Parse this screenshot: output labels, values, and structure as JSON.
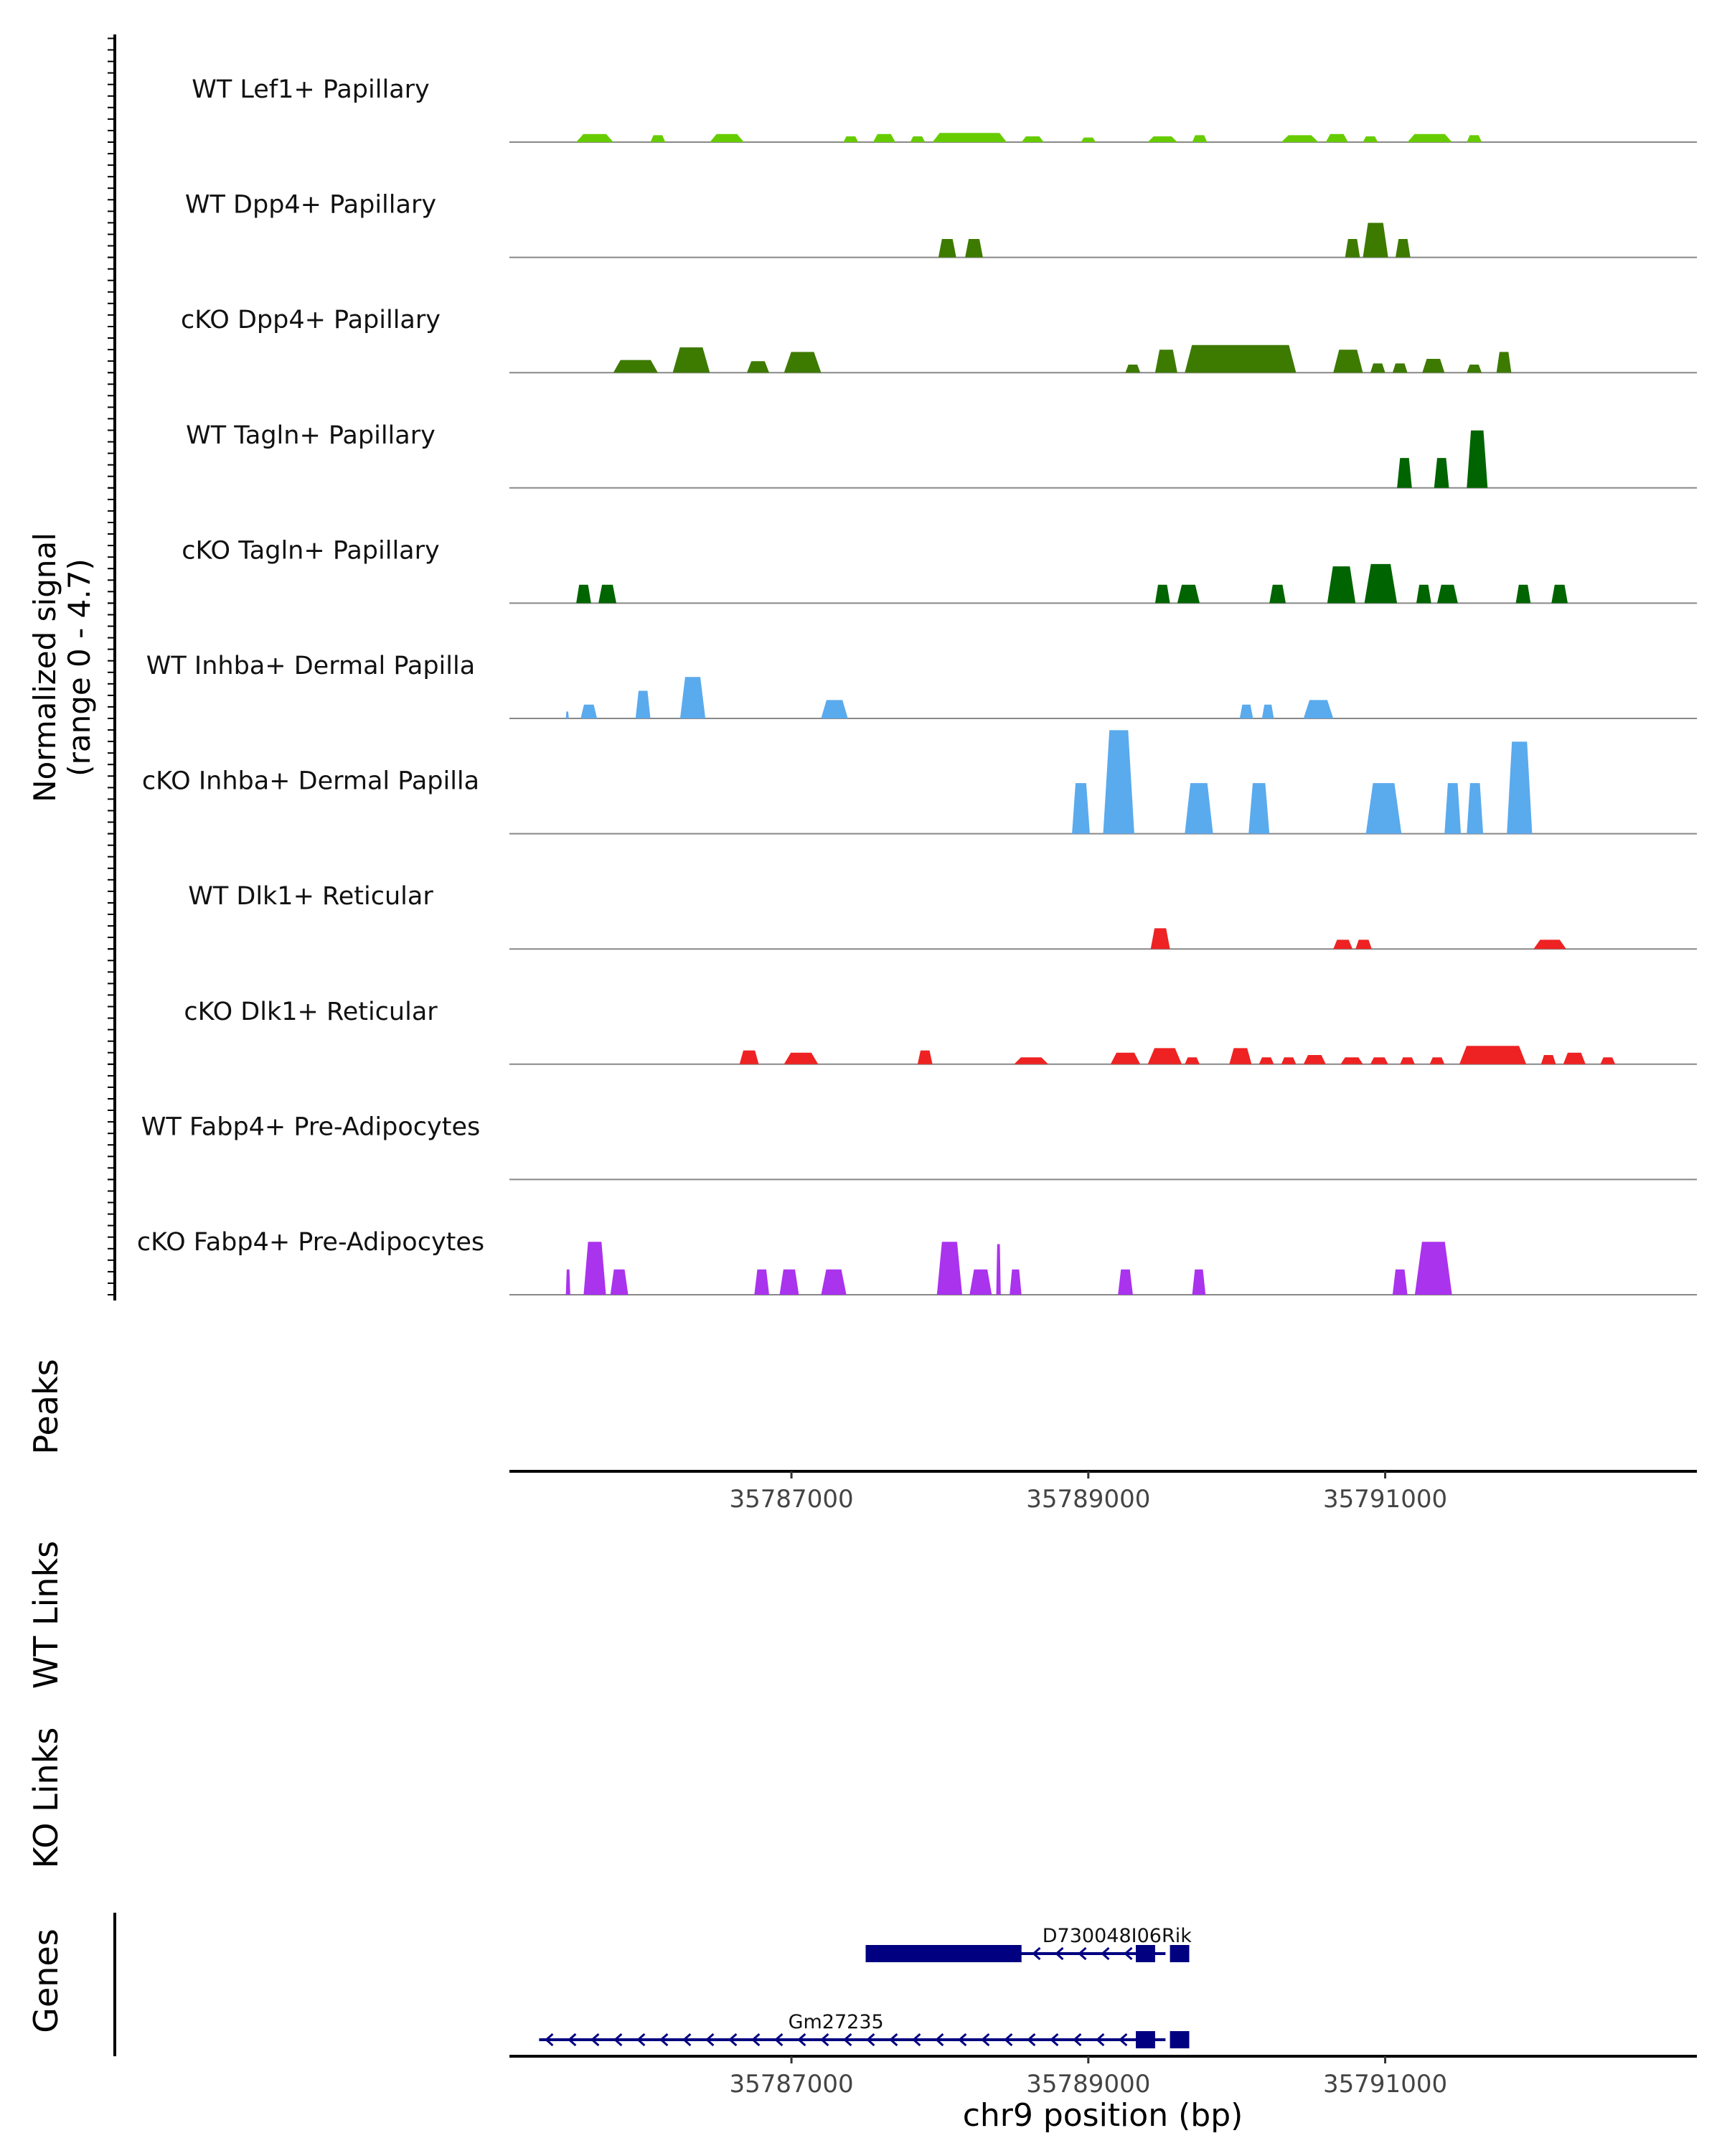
{
  "chart_data": {
    "type": "area",
    "title": "",
    "chromosome": "chr9",
    "xlabel": "chr9 position (bp)",
    "xlim": [
      35785100,
      35793100
    ],
    "x_ticks": [
      35787000,
      35789000,
      35791000
    ],
    "x_tick_labels": [
      "35787000",
      "35789000",
      "35791000"
    ],
    "signal_axis_label_line1": "Normalized signal",
    "signal_axis_label_line2": "(range 0 - 4.7)",
    "ylim": [
      0,
      4.7
    ],
    "panel_labels": {
      "peaks": "Peaks",
      "wt_links": "WT Links",
      "ko_links": "KO Links",
      "genes": "Genes"
    },
    "tracks": [
      {
        "name": "WT Lef1+ Papillary",
        "color": "#66cc00",
        "regions": [
          [
            35785550,
            35785800,
            0.35
          ],
          [
            35786050,
            35786150,
            0.3
          ],
          [
            35786450,
            35786680,
            0.35
          ],
          [
            35787350,
            35787450,
            0.25
          ],
          [
            35787550,
            35787700,
            0.35
          ],
          [
            35787800,
            35787900,
            0.25
          ],
          [
            35787950,
            35788450,
            0.4
          ],
          [
            35788550,
            35788700,
            0.25
          ],
          [
            35788950,
            35789050,
            0.2
          ],
          [
            35789400,
            35789600,
            0.25
          ],
          [
            35789700,
            35789800,
            0.3
          ],
          [
            35790300,
            35790550,
            0.3
          ],
          [
            35790600,
            35790750,
            0.35
          ],
          [
            35790850,
            35790950,
            0.25
          ],
          [
            35791150,
            35791450,
            0.35
          ],
          [
            35791550,
            35791650,
            0.3
          ]
        ]
      },
      {
        "name": "WT Dpp4+ Papillary",
        "color": "#3d7a00",
        "regions": [
          [
            35787990,
            35788110,
            0.8
          ],
          [
            35788170,
            35788290,
            0.8
          ],
          [
            35790730,
            35790830,
            0.8
          ],
          [
            35790850,
            35791020,
            1.5
          ],
          [
            35791070,
            35791170,
            0.8
          ]
        ]
      },
      {
        "name": "cKO Dpp4+ Papillary",
        "color": "#3d7a00",
        "regions": [
          [
            35785800,
            35786100,
            0.55
          ],
          [
            35786200,
            35786450,
            1.1
          ],
          [
            35786700,
            35786850,
            0.5
          ],
          [
            35786950,
            35787200,
            0.9
          ],
          [
            35789250,
            35789350,
            0.35
          ],
          [
            35789450,
            35789600,
            1.0
          ],
          [
            35789650,
            35790400,
            1.2
          ],
          [
            35790650,
            35790850,
            1.0
          ],
          [
            35790900,
            35791000,
            0.4
          ],
          [
            35791050,
            35791150,
            0.4
          ],
          [
            35791250,
            35791400,
            0.6
          ],
          [
            35791550,
            35791650,
            0.35
          ],
          [
            35791750,
            35791850,
            0.9
          ]
        ]
      },
      {
        "name": "WT Tagln+ Papillary",
        "color": "#006400",
        "regions": [
          [
            35791080,
            35791180,
            1.3
          ],
          [
            35791330,
            35791430,
            1.3
          ],
          [
            35791550,
            35791690,
            2.5
          ]
        ]
      },
      {
        "name": "cKO Tagln+ Papillary",
        "color": "#006400",
        "regions": [
          [
            35785550,
            35785650,
            0.8
          ],
          [
            35785700,
            35785820,
            0.8
          ],
          [
            35789450,
            35789550,
            0.8
          ],
          [
            35789600,
            35789750,
            0.8
          ],
          [
            35790220,
            35790330,
            0.8
          ],
          [
            35790610,
            35790800,
            1.6
          ],
          [
            35790860,
            35791080,
            1.7
          ],
          [
            35791210,
            35791310,
            0.8
          ],
          [
            35791350,
            35791490,
            0.8
          ],
          [
            35791880,
            35791980,
            0.8
          ],
          [
            35792120,
            35792230,
            0.8
          ]
        ]
      },
      {
        "name": "WT Inhba+ Dermal Papilla",
        "color": "#5aaaee",
        "regions": [
          [
            35785480,
            35785500,
            0.3
          ],
          [
            35785580,
            35785690,
            0.6
          ],
          [
            35785950,
            35786050,
            1.2
          ],
          [
            35786250,
            35786420,
            1.8
          ],
          [
            35787200,
            35787380,
            0.8
          ],
          [
            35790020,
            35790110,
            0.6
          ],
          [
            35790170,
            35790250,
            0.6
          ],
          [
            35790450,
            35790650,
            0.8
          ]
        ]
      },
      {
        "name": "cKO Inhba+ Dermal Papilla",
        "color": "#5aaaee",
        "regions": [
          [
            35788890,
            35789010,
            2.2
          ],
          [
            35789100,
            35789310,
            4.5
          ],
          [
            35789650,
            35789840,
            2.2
          ],
          [
            35790080,
            35790220,
            2.2
          ],
          [
            35790870,
            35791110,
            2.2
          ],
          [
            35791400,
            35791510,
            2.2
          ],
          [
            35791550,
            35791660,
            2.2
          ],
          [
            35791820,
            35791990,
            4.0
          ]
        ]
      },
      {
        "name": "WT Dlk1+ Reticular",
        "color": "#ee2222",
        "regions": [
          [
            35789420,
            35789550,
            0.9
          ],
          [
            35790650,
            35790780,
            0.4
          ],
          [
            35790800,
            35790910,
            0.4
          ],
          [
            35792000,
            35792220,
            0.4
          ]
        ]
      },
      {
        "name": "cKO Dlk1+ Reticular",
        "color": "#ee2222",
        "regions": [
          [
            35786650,
            35786780,
            0.6
          ],
          [
            35786950,
            35787180,
            0.5
          ],
          [
            35787850,
            35787950,
            0.6
          ],
          [
            35788500,
            35788730,
            0.3
          ],
          [
            35789150,
            35789350,
            0.5
          ],
          [
            35789400,
            35789630,
            0.7
          ],
          [
            35789650,
            35789750,
            0.3
          ],
          [
            35789950,
            35790100,
            0.7
          ],
          [
            35790150,
            35790250,
            0.3
          ],
          [
            35790300,
            35790400,
            0.3
          ],
          [
            35790450,
            35790600,
            0.4
          ],
          [
            35790700,
            35790850,
            0.3
          ],
          [
            35790900,
            35791020,
            0.3
          ],
          [
            35791100,
            35791200,
            0.3
          ],
          [
            35791300,
            35791400,
            0.3
          ],
          [
            35791500,
            35791950,
            0.8
          ],
          [
            35792050,
            35792150,
            0.4
          ],
          [
            35792200,
            35792350,
            0.5
          ],
          [
            35792450,
            35792550,
            0.3
          ]
        ]
      },
      {
        "name": "WT Fabp4+ Pre-Adipocytes",
        "color": "#aa33ee",
        "regions": []
      },
      {
        "name": "cKO Fabp4+ Pre-Adipocytes",
        "color": "#aa33ee",
        "regions": [
          [
            35785480,
            35785510,
            1.1
          ],
          [
            35785600,
            35785750,
            2.3
          ],
          [
            35785780,
            35785900,
            1.1
          ],
          [
            35786750,
            35786850,
            1.1
          ],
          [
            35786920,
            35787050,
            1.1
          ],
          [
            35787200,
            35787370,
            1.1
          ],
          [
            35787980,
            35788150,
            2.3
          ],
          [
            35788200,
            35788350,
            1.1
          ],
          [
            35788380,
            35788410,
            2.2
          ],
          [
            35788470,
            35788550,
            1.1
          ],
          [
            35789200,
            35789300,
            1.1
          ],
          [
            35789700,
            35789790,
            1.1
          ],
          [
            35791050,
            35791150,
            1.1
          ],
          [
            35791200,
            35791450,
            2.3
          ]
        ]
      }
    ],
    "genes": [
      {
        "name": "D730048I06Rik",
        "color": "#000080",
        "line_start": 35787500,
        "line_end": 35789520,
        "strand": "-",
        "exons": [
          [
            35787500,
            35788550
          ],
          [
            35789320,
            35789450
          ],
          [
            35789550,
            35789680
          ]
        ]
      },
      {
        "name": "Gm27235",
        "color": "#000080",
        "line_start": 35785300,
        "line_end": 35789520,
        "strand": "-",
        "exons": [
          [
            35789320,
            35789450
          ],
          [
            35789550,
            35789680
          ]
        ]
      }
    ]
  }
}
